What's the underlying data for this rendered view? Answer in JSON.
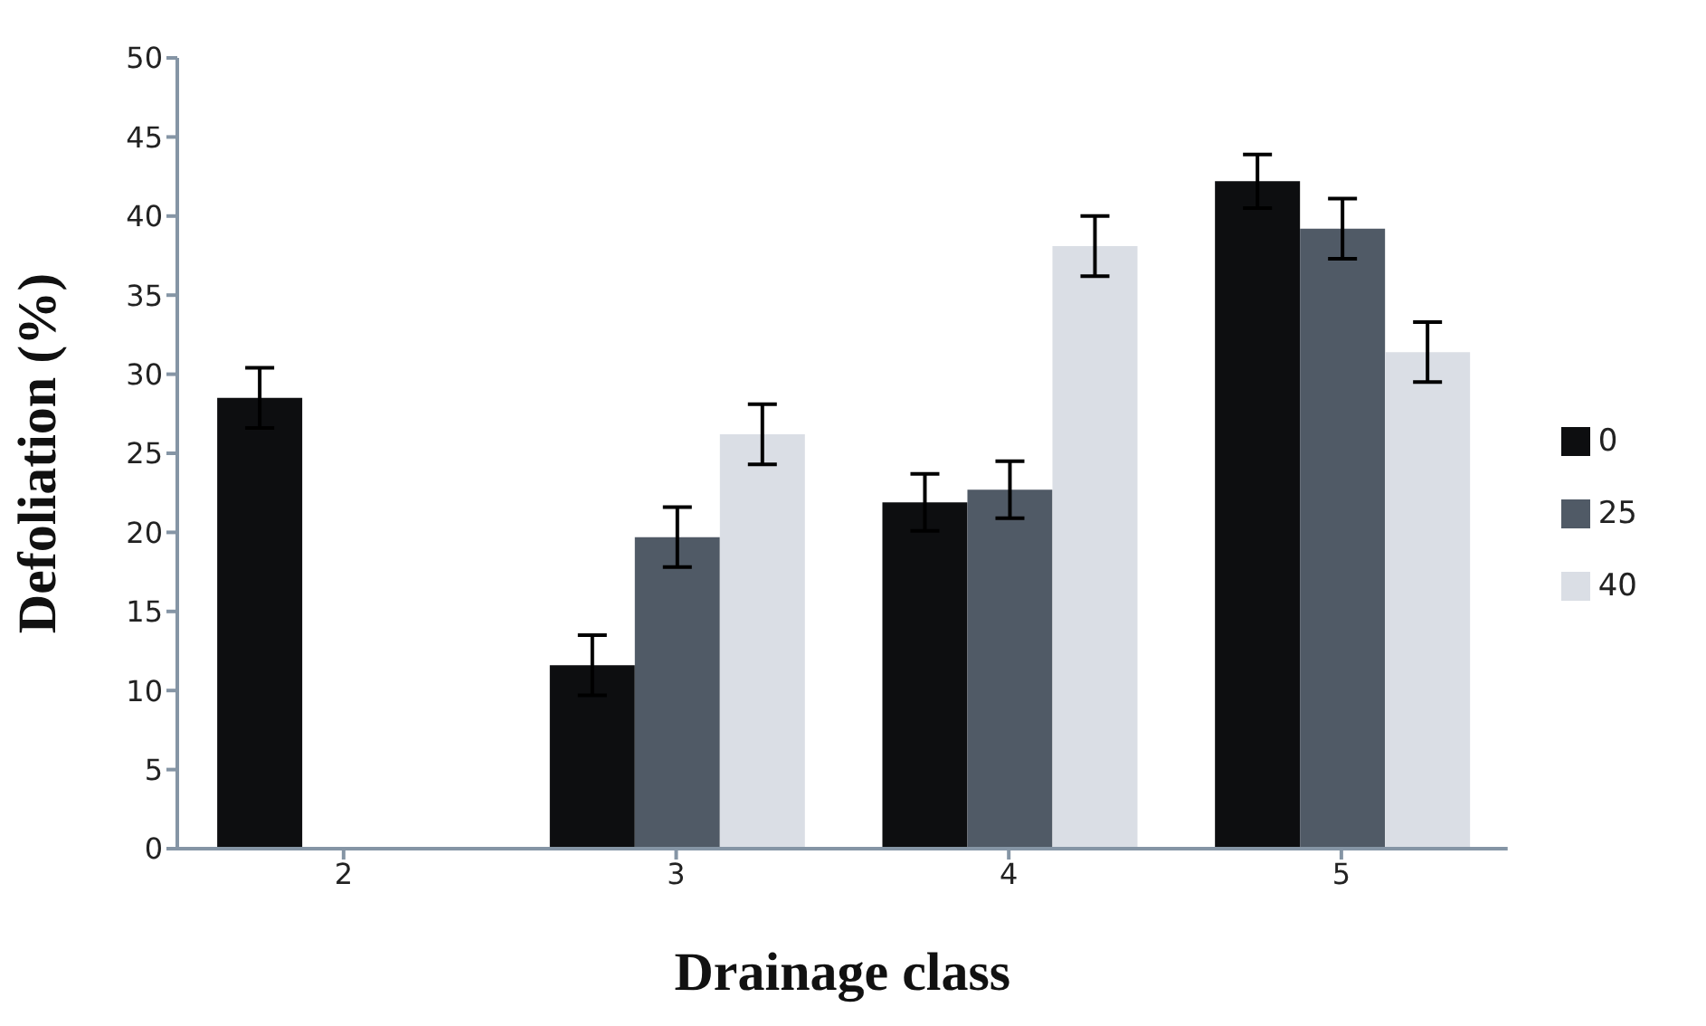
{
  "chart_data": {
    "type": "bar",
    "xlabel": "Drainage class",
    "ylabel": "Defoliation (%)",
    "categories": [
      "2",
      "3",
      "4",
      "5"
    ],
    "series": [
      {
        "name": "0",
        "color": "#0d0e10",
        "values": [
          28.5,
          11.6,
          21.9,
          42.2
        ],
        "errors": [
          1.9,
          1.9,
          1.8,
          1.7
        ]
      },
      {
        "name": "25",
        "color": "#505a66",
        "values": [
          null,
          19.7,
          22.7,
          39.2
        ],
        "errors": [
          null,
          1.9,
          1.8,
          1.9
        ]
      },
      {
        "name": "40",
        "color": "#dadee5",
        "values": [
          null,
          26.2,
          38.1,
          31.4
        ],
        "errors": [
          null,
          1.9,
          1.9,
          1.9
        ]
      }
    ],
    "ylim": [
      0,
      50
    ],
    "yticks": [
      0,
      5,
      10,
      15,
      20,
      25,
      30,
      35,
      40,
      45,
      50
    ],
    "grid": false,
    "legend": "right"
  }
}
